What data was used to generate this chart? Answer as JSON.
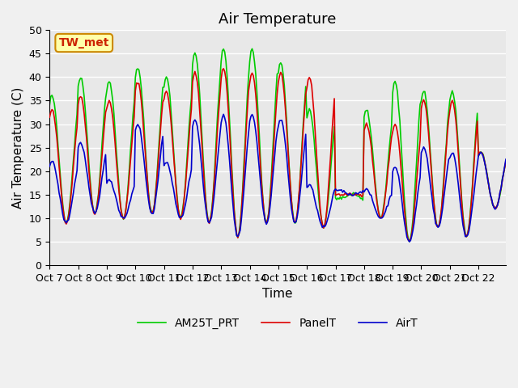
{
  "title": "Air Temperature",
  "xlabel": "Time",
  "ylabel": "Air Temperature (C)",
  "ylim": [
    0,
    50
  ],
  "yticks": [
    0,
    5,
    10,
    15,
    20,
    25,
    30,
    35,
    40,
    45,
    50
  ],
  "x_labels": [
    "Oct 7",
    "Oct 8",
    " Oct 9",
    "Oct 10",
    "Oct 11",
    "Oct 12",
    "Oct 13",
    "Oct 14",
    "Oct 15",
    "Oct 16",
    "Oct 17",
    "Oct 18",
    "Oct 19",
    "Oct 20",
    "Oct 21",
    "Oct 22"
  ],
  "panel_label": "TW_met",
  "panel_label_color": "#cc2200",
  "panel_label_bg": "#ffffaa",
  "panel_label_edge": "#cc8800",
  "legend_entries": [
    "PanelT",
    "AirT",
    "AM25T_PRT"
  ],
  "legend_colors": [
    "#dd0000",
    "#0000cc",
    "#00cc00"
  ],
  "background_color": "#e8e8e8",
  "grid_color": "#ffffff",
  "title_fontsize": 13,
  "axis_fontsize": 11,
  "legend_fontsize": 10,
  "daily_mins": [
    9,
    11,
    10,
    11,
    10,
    9,
    6,
    9,
    9,
    8,
    15,
    10,
    5,
    8,
    6,
    12
  ],
  "daily_maxs_panel": [
    33,
    36,
    35,
    39,
    37,
    41,
    42,
    41,
    41,
    40,
    15,
    30,
    30,
    35,
    35,
    24
  ],
  "daily_maxs_air": [
    22,
    26,
    18,
    30,
    22,
    31,
    32,
    32,
    31,
    17,
    16,
    16,
    21,
    25,
    24,
    24
  ],
  "daily_maxs_am25": [
    36,
    40,
    39,
    42,
    40,
    45,
    46,
    46,
    43,
    33,
    14,
    33,
    39,
    37,
    37,
    24
  ]
}
